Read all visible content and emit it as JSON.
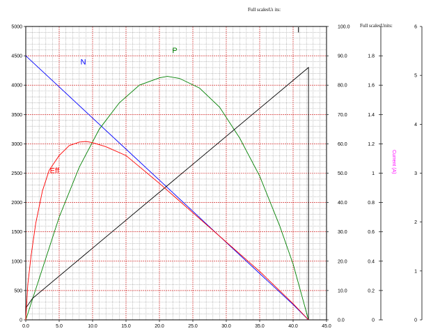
{
  "chart_data": {
    "type": "line",
    "headers": {
      "main": "Full scalesUı its:",
      "secondary": "Full scalesUnits:"
    },
    "x_axis": {
      "min": 0,
      "max": 45,
      "step": 5,
      "tick_labels": [
        "0.0",
        "5.0",
        "10.0",
        "15.0",
        "20.0",
        "25.0",
        "30.0",
        "35.0",
        "40.0",
        "45.0"
      ]
    },
    "y_left": {
      "min": 0,
      "max": 5000,
      "step": 500,
      "tick_labels": [
        "0",
        "500",
        "1000",
        "1500",
        "2000",
        "2500",
        "3000",
        "3500",
        "4000",
        "4500",
        "5000"
      ]
    },
    "y_right1": {
      "min": 0,
      "max": 100,
      "step": 10,
      "tick_labels": [
        "0.0",
        "10.0",
        "20.0",
        "30.0",
        "40.0",
        "50.0",
        "60.0",
        "70.0",
        "80.0",
        "90.0",
        "100.0"
      ]
    },
    "y_right2": {
      "min": 0,
      "max": 2,
      "step": 0.2,
      "label": "Current (A)",
      "tick_labels": [
        "0",
        "0.2",
        "0.4",
        "0.6",
        "0.8",
        "1",
        "1.2",
        "1.4",
        "1.6",
        "1.8"
      ]
    },
    "y_right3": {
      "min": 0,
      "max": 6,
      "step": 1,
      "tick_labels": [
        "0",
        "1",
        "2",
        "3",
        "4",
        "5",
        "6"
      ]
    },
    "grid": true,
    "series": [
      {
        "name": "N",
        "color": "#0000ff",
        "axis": "left",
        "x": [
          0,
          5,
          10,
          15,
          20,
          25,
          30,
          35,
          40,
          42.3
        ],
        "y": [
          4500,
          3970,
          3440,
          2910,
          2380,
          1850,
          1320,
          790,
          260,
          0
        ]
      },
      {
        "name": "P",
        "color": "#008000",
        "axis": "right1",
        "x": [
          0,
          2,
          5,
          8,
          11,
          14,
          17,
          20,
          21.2,
          23,
          26,
          29,
          32,
          35,
          38,
          40,
          42.3
        ],
        "y": [
          0,
          14,
          35,
          52,
          65,
          74,
          80,
          82.5,
          83,
          82.3,
          79,
          72.5,
          62,
          49,
          32,
          19,
          0
        ]
      },
      {
        "name": "I",
        "color": "#000000",
        "axis": "right1",
        "x": [
          0,
          1,
          42.3,
          42.3
        ],
        "y": [
          4,
          7.3,
          86,
          0
        ]
      },
      {
        "name": "Eff",
        "color": "#ff0000",
        "axis": "right1",
        "x": [
          0,
          0.3,
          0.8,
          1.5,
          2.5,
          3.5,
          5,
          6.5,
          8,
          9,
          10,
          12,
          15,
          20,
          25,
          30,
          35,
          40,
          42.3
        ],
        "y": [
          0,
          12,
          22,
          33,
          44,
          51,
          56,
          59.4,
          60.6,
          60.8,
          60.4,
          59,
          56,
          46.5,
          36.5,
          26.5,
          16.5,
          5.5,
          0
        ]
      }
    ]
  }
}
